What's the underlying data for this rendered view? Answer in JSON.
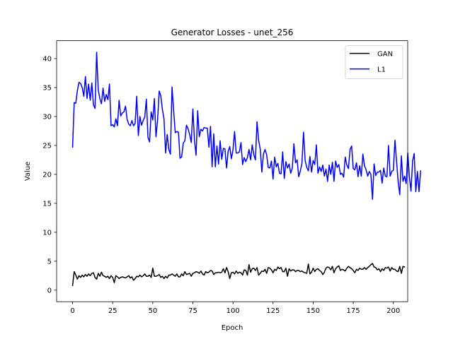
{
  "chart_data": {
    "type": "line",
    "title": "Generator Losses - unet_256",
    "xlabel": "Epoch",
    "ylabel": "Value",
    "xlim": [
      -9.95,
      208.95
    ],
    "ylim": [
      -2.0,
      43.1
    ],
    "xticks": [
      0,
      25,
      50,
      75,
      100,
      125,
      150,
      175,
      200
    ],
    "yticks": [
      0,
      5,
      10,
      15,
      20,
      25,
      30,
      35,
      40
    ],
    "grid": false,
    "legend": "top-right",
    "series": [
      {
        "name": "GAN",
        "color": "#000000",
        "x_start": 0,
        "values": [
          0.8,
          3.2,
          2.6,
          1.9,
          2.5,
          2.2,
          2.6,
          2.3,
          2.7,
          2.4,
          2.8,
          2.5,
          2.9,
          3.0,
          2.2,
          1.9,
          2.9,
          2.4,
          3.1,
          2.5,
          2.4,
          2.2,
          2.4,
          2.0,
          2.5,
          2.2,
          1.3,
          2.5,
          2.3,
          2.0,
          2.2,
          2.3,
          2.2,
          2.1,
          2.3,
          2.5,
          2.1,
          2.3,
          1.7,
          2.0,
          2.4,
          2.3,
          2.6,
          2.3,
          2.5,
          2.8,
          2.4,
          2.4,
          2.6,
          2.2,
          3.8,
          2.4,
          2.4,
          2.5,
          2.7,
          2.2,
          2.4,
          2.0,
          2.4,
          2.1,
          2.6,
          2.6,
          2.8,
          2.6,
          2.4,
          2.8,
          2.3,
          2.3,
          2.8,
          2.5,
          3.2,
          2.7,
          2.8,
          2.9,
          2.4,
          2.9,
          3.0,
          3.2,
          3.1,
          2.9,
          3.3,
          2.8,
          2.6,
          3.2,
          3.0,
          3.1,
          3.4,
          3.3,
          2.7,
          3.0,
          3.0,
          3.1,
          3.0,
          3.1,
          3.7,
          3.0,
          3.9,
          3.2,
          2.0,
          3.0,
          3.1,
          2.8,
          3.3,
          2.9,
          3.1,
          3.0,
          2.6,
          3.5,
          3.4,
          2.6,
          4.4,
          3.1,
          3.7,
          3.8,
          3.4,
          3.9,
          2.6,
          2.9,
          3.3,
          3.2,
          3.6,
          2.9,
          3.9,
          3.8,
          3.5,
          3.0,
          3.6,
          3.4,
          4.0,
          3.7,
          3.9,
          3.2,
          3.2,
          3.8,
          2.4,
          3.7,
          3.3,
          3.5,
          3.5,
          3.2,
          3.4,
          3.4,
          3.2,
          3.3,
          3.1,
          3.0,
          2.9,
          4.5,
          2.8,
          3.1,
          3.8,
          3.2,
          3.6,
          3.7,
          3.4,
          3.2,
          2.7,
          3.1,
          3.8,
          4.0,
          3.9,
          3.5,
          4.1,
          3.0,
          3.7,
          4.0,
          4.2,
          3.4,
          3.6,
          3.5,
          3.3,
          3.8,
          4.1,
          3.9,
          3.7,
          3.4,
          3.0,
          3.6,
          3.4,
          3.8,
          3.6,
          3.6,
          3.9,
          3.6,
          3.9,
          4.1,
          4.4,
          4.6,
          4.0,
          3.9,
          3.5,
          3.7,
          3.2,
          3.7,
          3.4,
          3.9,
          3.8,
          4.0,
          3.3,
          3.9,
          3.6,
          3.6,
          3.3,
          3.2,
          4.1,
          2.9,
          4.1,
          4.0
        ]
      },
      {
        "name": "L1",
        "color": "#0000ff",
        "x_start": 0,
        "values": [
          24.7,
          32.4,
          32.3,
          34.5,
          35.9,
          35.7,
          35.0,
          33.5,
          36.9,
          33.1,
          35.6,
          32.8,
          35.8,
          32.0,
          31.4,
          41.1,
          34.6,
          33.1,
          32.2,
          34.9,
          32.6,
          33.8,
          32.9,
          35.6,
          28.4,
          28.6,
          28.2,
          29.6,
          28.4,
          32.8,
          30.1,
          30.6,
          30.8,
          31.8,
          29.5,
          28.7,
          28.4,
          29.3,
          28.4,
          28.8,
          33.5,
          26.7,
          30.0,
          28.5,
          29.3,
          29.9,
          33.0,
          26.4,
          25.6,
          30.8,
          29.4,
          33.1,
          26.5,
          29.4,
          34.4,
          33.6,
          31.2,
          29.6,
          23.7,
          26.9,
          24.3,
          23.5,
          35.1,
          31.1,
          27.2,
          27.4,
          27.3,
          22.8,
          23.0,
          25.4,
          25.8,
          28.5,
          27.9,
          26.9,
          25.5,
          31.3,
          25.9,
          23.3,
          31.0,
          26.5,
          27.8,
          27.5,
          28.1,
          28.0,
          28.0,
          24.7,
          28.3,
          21.3,
          27.0,
          21.3,
          24.9,
          21.8,
          25.8,
          22.6,
          24.5,
          24.4,
          21.1,
          24.0,
          24.8,
          22.7,
          24.2,
          27.4,
          23.7,
          23.7,
          23.9,
          25.5,
          21.7,
          22.9,
          22.2,
          22.9,
          24.3,
          22.5,
          25.1,
          23.4,
          22.5,
          29.1,
          25.9,
          24.4,
          20.4,
          23.5,
          24.3,
          23.4,
          21.2,
          21.1,
          22.3,
          19.2,
          23.0,
          21.3,
          21.9,
          20.2,
          20.1,
          23.9,
          19.3,
          22.2,
          21.1,
          21.8,
          20.2,
          21.1,
          25.3,
          22.0,
          22.5,
          19.6,
          20.6,
          21.9,
          27.3,
          22.4,
          21.2,
          20.6,
          23.1,
          20.4,
          22.4,
          21.7,
          25.1,
          20.2,
          21.3,
          20.5,
          21.6,
          19.7,
          20.9,
          18.8,
          21.6,
          20.0,
          22.1,
          18.8,
          22.3,
          21.2,
          21.7,
          20.0,
          20.2,
          19.5,
          23.0,
          21.6,
          21.0,
          24.3,
          24.9,
          21.0,
          20.8,
          22.0,
          19.6,
          21.5,
          19.7,
          23.5,
          21.5,
          20.8,
          19.7,
          20.5,
          20.0,
          15.7,
          21.8,
          19.8,
          20.4,
          20.4,
          20.7,
          18.5,
          21.1,
          19.7,
          19.6,
          25.0,
          19.7,
          20.5,
          20.7,
          25.9,
          22.3,
          18.7,
          16.5,
          23.2,
          18.8,
          19.7,
          18.4,
          23.7,
          19.6,
          17.1,
          22.3,
          23.6,
          17.0,
          20.5,
          17.0,
          20.6
        ]
      }
    ]
  }
}
